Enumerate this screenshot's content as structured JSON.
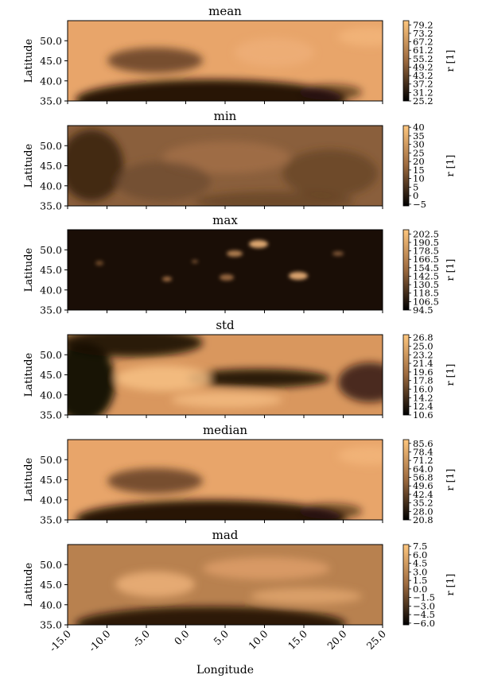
{
  "figure": {
    "xlabel": "Longitude",
    "ylabel": "Latitude",
    "cbar_label": "r [1]",
    "x_ticks": [
      "-15.0",
      "-10.0",
      "-5.0",
      "0.0",
      "5.0",
      "10.0",
      "15.0",
      "20.0",
      "25.0"
    ],
    "y_ticks": [
      "35.0",
      "40.0",
      "45.0",
      "50.0"
    ]
  },
  "colormap": {
    "name": "copper",
    "low": "#000000",
    "high": "#ffc77f"
  },
  "chart_data": [
    {
      "type": "heatmap",
      "title": "mean",
      "xlabel": "",
      "ylabel": "Latitude",
      "xlim": [
        -15,
        25
      ],
      "ylim": [
        35,
        55
      ],
      "cbar_label": "r [1]",
      "cbar_range": [
        25.2,
        82.2
      ],
      "cbar_ticks": [
        "25.2",
        "31.2",
        "37.2",
        "43.2",
        "49.2",
        "55.2",
        "61.2",
        "67.2",
        "73.2",
        "79.2"
      ]
    },
    {
      "type": "heatmap",
      "title": "min",
      "xlabel": "",
      "ylabel": "Latitude",
      "xlim": [
        -15,
        25
      ],
      "ylim": [
        35,
        55
      ],
      "cbar_label": "r [1]",
      "cbar_range": [
        -6,
        41
      ],
      "cbar_ticks": [
        "−5",
        "0",
        "5",
        "10",
        "15",
        "20",
        "25",
        "30",
        "35",
        "40"
      ]
    },
    {
      "type": "heatmap",
      "title": "max",
      "xlabel": "",
      "ylabel": "Latitude",
      "xlim": [
        -15,
        25
      ],
      "ylim": [
        35,
        55
      ],
      "cbar_label": "r [1]",
      "cbar_range": [
        94.5,
        208.5
      ],
      "cbar_ticks": [
        "94.5",
        "106.5",
        "118.5",
        "130.5",
        "142.5",
        "154.5",
        "166.5",
        "178.5",
        "190.5",
        "202.5"
      ]
    },
    {
      "type": "heatmap",
      "title": "std",
      "xlabel": "",
      "ylabel": "Latitude",
      "xlim": [
        -15,
        25
      ],
      "ylim": [
        35,
        55
      ],
      "cbar_label": "r [1]",
      "cbar_range": [
        10.6,
        27.4
      ],
      "cbar_ticks": [
        "10.6",
        "12.4",
        "14.2",
        "16.0",
        "17.8",
        "19.6",
        "21.4",
        "23.2",
        "25.0",
        "26.8"
      ]
    },
    {
      "type": "heatmap",
      "title": "median",
      "xlabel": "",
      "ylabel": "Latitude",
      "xlim": [
        -15,
        25
      ],
      "ylim": [
        35,
        55
      ],
      "cbar_label": "r [1]",
      "cbar_range": [
        20.8,
        88.8
      ],
      "cbar_ticks": [
        "20.8",
        "28.0",
        "35.2",
        "42.4",
        "49.6",
        "56.8",
        "64.0",
        "71.2",
        "78.4",
        "85.6"
      ]
    },
    {
      "type": "heatmap",
      "title": "mad",
      "xlabel": "Longitude",
      "ylabel": "Latitude",
      "xlim": [
        -15,
        25
      ],
      "ylim": [
        35,
        55
      ],
      "cbar_label": "r [1]",
      "cbar_range": [
        -6.3,
        7.8
      ],
      "cbar_ticks": [
        "−6.0",
        "−4.5",
        "−3.0",
        "−1.5",
        "0.0",
        "1.5",
        "3.0",
        "4.5",
        "6.0",
        "7.5"
      ]
    }
  ]
}
